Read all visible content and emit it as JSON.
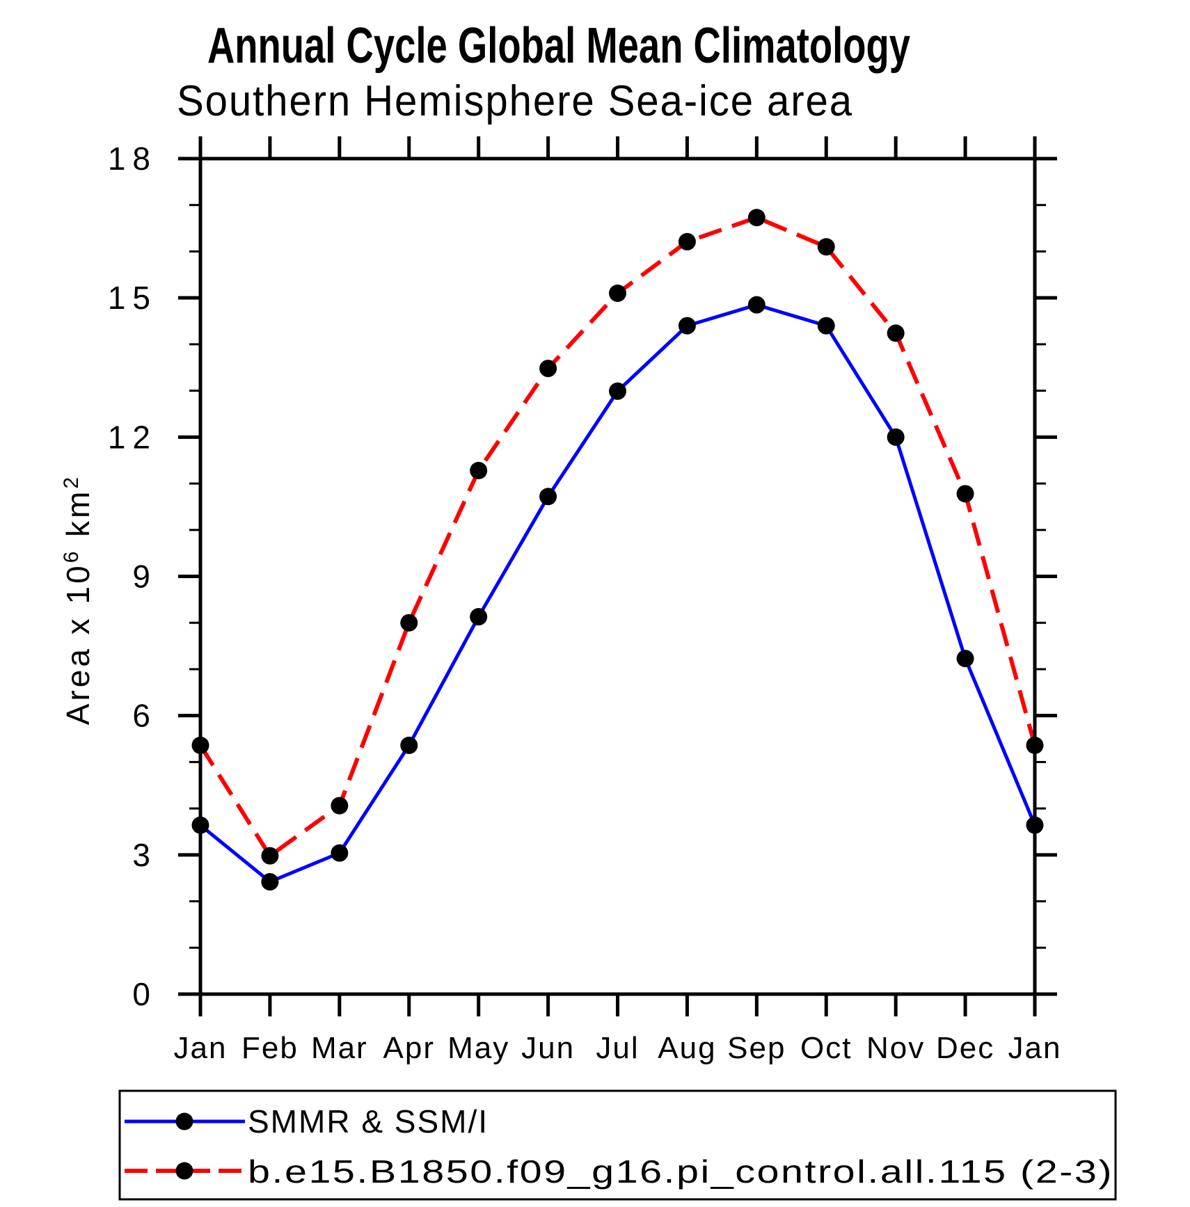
{
  "header": {
    "title": "Annual Cycle Global Mean Climatology",
    "subtitle": "Southern Hemisphere Sea-ice area"
  },
  "y_axis": {
    "label_base1": "Area x 10",
    "label_sup1": "6",
    "label_base2": " km",
    "label_sup2": "2",
    "major_ticks": [
      0,
      3,
      6,
      9,
      12,
      15,
      18
    ],
    "minor_tick_step": 1,
    "range": [
      0,
      18
    ]
  },
  "x_axis": {
    "categories": [
      "Jan",
      "Feb",
      "Mar",
      "Apr",
      "May",
      "Jun",
      "Jul",
      "Aug",
      "Sep",
      "Oct",
      "Nov",
      "Dec",
      "Jan"
    ]
  },
  "chart_data": {
    "type": "line",
    "title": "Annual Cycle Global Mean Climatology",
    "subtitle": "Southern Hemisphere Sea-ice area",
    "categories": [
      "Jan",
      "Feb",
      "Mar",
      "Apr",
      "May",
      "Jun",
      "Jul",
      "Aug",
      "Sep",
      "Oct",
      "Nov",
      "Dec",
      "Jan"
    ],
    "series": [
      {
        "name": "SMMR & SSM/I",
        "color": "#0000ff",
        "line_style": "solid",
        "marker": "black-circle",
        "values": [
          3.64,
          2.42,
          3.04,
          5.36,
          8.13,
          10.72,
          12.99,
          14.4,
          14.85,
          14.4,
          12.0,
          7.23,
          3.64
        ]
      },
      {
        "name": "b.e15.B1850.f09_g16.pi_control.all.115 (2-3)",
        "color": "#ff0000",
        "line_style": "dashed",
        "marker": "black-circle",
        "values": [
          5.36,
          2.98,
          4.06,
          8.0,
          11.28,
          13.48,
          15.1,
          16.21,
          16.73,
          16.1,
          14.24,
          10.78,
          5.36
        ]
      }
    ],
    "xlabel": "",
    "ylabel": "Area x 10^6 km^2",
    "ylim": [
      0,
      18
    ],
    "grid": false,
    "legend_position": "bottom",
    "marker_color": "#000000",
    "axis_color": "#000000"
  }
}
